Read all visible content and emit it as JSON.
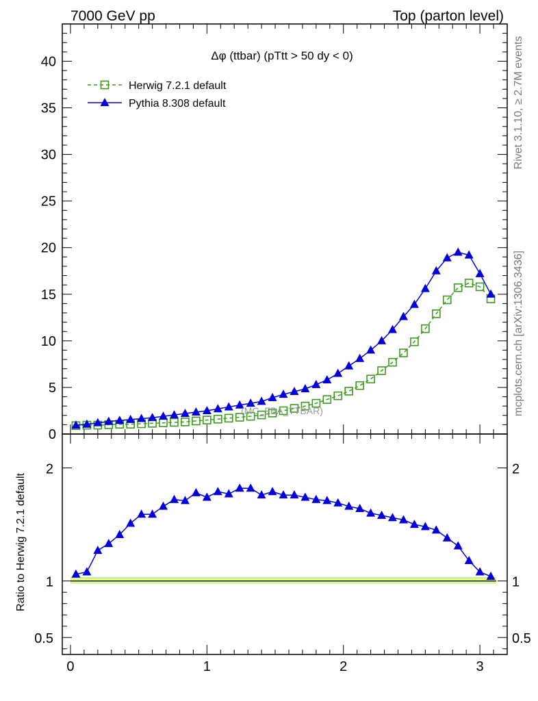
{
  "header": {
    "left": "7000 GeV pp",
    "right": "Top (parton level)"
  },
  "side": {
    "rivet": "Rivet 3.1.10, ≥ 2.7M events",
    "mcplots": "mcplots.cern.ch [arXiv:1306.3436]"
  },
  "watermark": "(MC_FBA_TTBAR)",
  "ratio_ylabel": "Ratio to Herwig 7.2.1 default",
  "colors": {
    "herwig": "#3a9a1a",
    "pythia": "#0000dd",
    "band_inner": "#f0ff70",
    "band_outer": "#c8f0a0"
  },
  "chart_data": [
    {
      "type": "line",
      "title": "Δφ (ttbar) (pTtt > 50 dy < 0)",
      "xlim": [
        -0.06,
        3.2
      ],
      "ylim": [
        0,
        44
      ],
      "yticks": [
        0,
        5,
        10,
        15,
        20,
        25,
        30,
        35,
        40
      ],
      "legend_position": "top-left",
      "x": [
        0.04,
        0.12,
        0.2,
        0.28,
        0.36,
        0.44,
        0.52,
        0.6,
        0.68,
        0.76,
        0.84,
        0.92,
        1.0,
        1.08,
        1.16,
        1.24,
        1.32,
        1.4,
        1.48,
        1.56,
        1.64,
        1.72,
        1.8,
        1.88,
        1.96,
        2.04,
        2.12,
        2.2,
        2.28,
        2.36,
        2.44,
        2.52,
        2.6,
        2.68,
        2.76,
        2.84,
        2.92,
        3.0,
        3.08
      ],
      "series": [
        {
          "name": "Herwig 7.2.1 default",
          "marker": "open-square",
          "style": "dashed",
          "values": [
            0.9,
            0.95,
            0.95,
            1.0,
            1.05,
            1.05,
            1.1,
            1.15,
            1.2,
            1.25,
            1.3,
            1.4,
            1.5,
            1.6,
            1.7,
            1.8,
            1.9,
            2.05,
            2.25,
            2.5,
            2.75,
            3.0,
            3.3,
            3.7,
            4.1,
            4.6,
            5.2,
            5.9,
            6.8,
            7.7,
            8.7,
            9.9,
            11.3,
            12.9,
            14.4,
            15.7,
            16.2,
            15.8,
            14.5
          ]
        },
        {
          "name": "Pythia 8.308 default",
          "marker": "filled-triangle",
          "style": "solid",
          "values": [
            0.95,
            1.05,
            1.2,
            1.35,
            1.45,
            1.55,
            1.65,
            1.75,
            1.9,
            2.05,
            2.2,
            2.35,
            2.5,
            2.7,
            2.9,
            3.1,
            3.3,
            3.5,
            3.9,
            4.25,
            4.55,
            4.85,
            5.3,
            5.8,
            6.5,
            7.3,
            8.1,
            9.0,
            10.0,
            11.2,
            12.6,
            13.9,
            15.6,
            17.5,
            18.9,
            19.5,
            19.2,
            17.2,
            15.0
          ]
        }
      ]
    },
    {
      "type": "line",
      "xlabel": "",
      "ylabel": "Ratio to Herwig 7.2.1 default",
      "xlim": [
        -0.06,
        3.2
      ],
      "ylim": [
        0.35,
        2.3
      ],
      "xticks": [
        0,
        1,
        2,
        3
      ],
      "yticks": [
        0.5,
        1,
        2
      ],
      "x": [
        0.04,
        0.12,
        0.2,
        0.28,
        0.36,
        0.44,
        0.52,
        0.6,
        0.68,
        0.76,
        0.84,
        0.92,
        1.0,
        1.08,
        1.16,
        1.24,
        1.32,
        1.4,
        1.48,
        1.56,
        1.64,
        1.72,
        1.8,
        1.88,
        1.96,
        2.04,
        2.12,
        2.2,
        2.28,
        2.36,
        2.44,
        2.52,
        2.6,
        2.68,
        2.76,
        2.84,
        2.92,
        3.0,
        3.08
      ],
      "series": [
        {
          "name": "Herwig 7.2.1 default",
          "values": [
            1,
            1,
            1,
            1,
            1,
            1,
            1,
            1,
            1,
            1,
            1,
            1,
            1,
            1,
            1,
            1,
            1,
            1,
            1,
            1,
            1,
            1,
            1,
            1,
            1,
            1,
            1,
            1,
            1,
            1,
            1,
            1,
            1,
            1,
            1,
            1,
            1,
            1,
            1
          ]
        },
        {
          "name": "Pythia 8.308 default",
          "values": [
            1.06,
            1.08,
            1.27,
            1.33,
            1.41,
            1.51,
            1.59,
            1.59,
            1.66,
            1.72,
            1.71,
            1.78,
            1.74,
            1.79,
            1.77,
            1.82,
            1.82,
            1.76,
            1.79,
            1.76,
            1.76,
            1.74,
            1.72,
            1.71,
            1.69,
            1.66,
            1.64,
            1.6,
            1.58,
            1.56,
            1.54,
            1.5,
            1.48,
            1.45,
            1.38,
            1.31,
            1.18,
            1.08,
            1.04
          ]
        }
      ]
    }
  ]
}
